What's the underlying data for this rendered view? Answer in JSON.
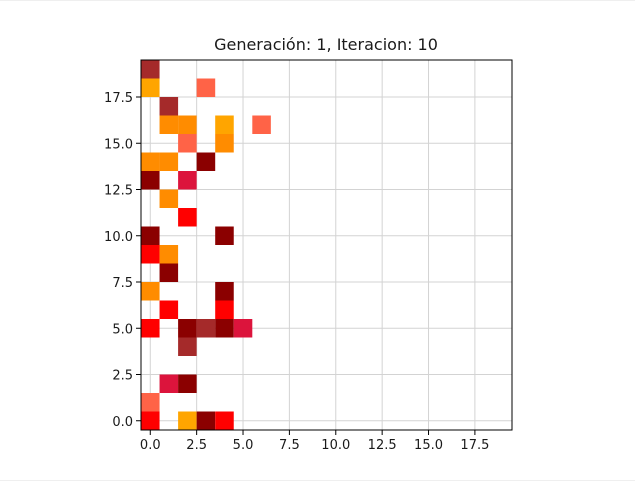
{
  "chart_data": {
    "type": "heatmap",
    "title": "Generación: 1, Iteracion: 10",
    "xlabel": "",
    "ylabel": "",
    "xlim": [
      -0.5,
      19.5
    ],
    "ylim": [
      -0.5,
      19.5
    ],
    "grid": true,
    "x_ticks": [
      "0.0",
      "2.5",
      "5.0",
      "7.5",
      "10.0",
      "12.5",
      "15.0",
      "17.5"
    ],
    "y_ticks": [
      "0.0",
      "2.5",
      "5.0",
      "7.5",
      "10.0",
      "12.5",
      "15.0",
      "17.5"
    ],
    "colors": {
      "darkred": "#8b0000",
      "brown": "#a52a2a",
      "crimson": "#dc143c",
      "red": "#ff0000",
      "tomato": "#ff6347",
      "darkorange": "#ff8c00",
      "orange": "#ffa500",
      "grid": "#d3d3d3"
    },
    "cells": [
      {
        "x": 0,
        "y": 19,
        "color": "brown"
      },
      {
        "x": 0,
        "y": 18,
        "color": "orange"
      },
      {
        "x": 3,
        "y": 18,
        "color": "tomato"
      },
      {
        "x": 1,
        "y": 17,
        "color": "brown"
      },
      {
        "x": 1,
        "y": 16,
        "color": "darkorange"
      },
      {
        "x": 2,
        "y": 16,
        "color": "darkorange"
      },
      {
        "x": 4,
        "y": 16,
        "color": "orange"
      },
      {
        "x": 6,
        "y": 16,
        "color": "tomato"
      },
      {
        "x": 2,
        "y": 15,
        "color": "tomato"
      },
      {
        "x": 4,
        "y": 15,
        "color": "darkorange"
      },
      {
        "x": 0,
        "y": 14,
        "color": "darkorange"
      },
      {
        "x": 1,
        "y": 14,
        "color": "darkorange"
      },
      {
        "x": 3,
        "y": 14,
        "color": "darkred"
      },
      {
        "x": 2,
        "y": 13,
        "color": "crimson"
      },
      {
        "x": 0,
        "y": 13,
        "color": "darkred"
      },
      {
        "x": 1,
        "y": 12,
        "color": "darkorange"
      },
      {
        "x": 2,
        "y": 11,
        "color": "red"
      },
      {
        "x": 0,
        "y": 10,
        "color": "darkred"
      },
      {
        "x": 4,
        "y": 10,
        "color": "darkred"
      },
      {
        "x": 0,
        "y": 9,
        "color": "red"
      },
      {
        "x": 1,
        "y": 9,
        "color": "darkorange"
      },
      {
        "x": 1,
        "y": 8,
        "color": "darkred"
      },
      {
        "x": 0,
        "y": 7,
        "color": "darkorange"
      },
      {
        "x": 4,
        "y": 7,
        "color": "darkred"
      },
      {
        "x": 1,
        "y": 6,
        "color": "red"
      },
      {
        "x": 4,
        "y": 6,
        "color": "red"
      },
      {
        "x": 0,
        "y": 5,
        "color": "red"
      },
      {
        "x": 2,
        "y": 5,
        "color": "darkred"
      },
      {
        "x": 3,
        "y": 5,
        "color": "brown"
      },
      {
        "x": 4,
        "y": 5,
        "color": "darkred"
      },
      {
        "x": 5,
        "y": 5,
        "color": "crimson"
      },
      {
        "x": 2,
        "y": 4,
        "color": "brown"
      },
      {
        "x": 1,
        "y": 2,
        "color": "crimson"
      },
      {
        "x": 2,
        "y": 2,
        "color": "darkred"
      },
      {
        "x": 0,
        "y": 1,
        "color": "tomato"
      },
      {
        "x": 0,
        "y": 0,
        "color": "red"
      },
      {
        "x": 2,
        "y": 0,
        "color": "orange"
      },
      {
        "x": 3,
        "y": 0,
        "color": "darkred"
      },
      {
        "x": 4,
        "y": 0,
        "color": "red"
      }
    ]
  }
}
